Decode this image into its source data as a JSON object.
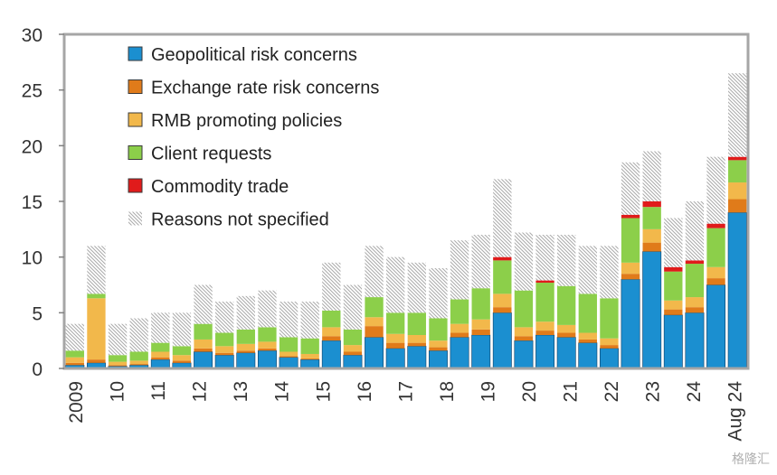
{
  "chart_data": {
    "type": "bar",
    "stacked": true,
    "ylim": [
      0,
      30
    ],
    "yticks": [
      0,
      5,
      10,
      15,
      20,
      25,
      30
    ],
    "grid": false,
    "legend_position": "top-left",
    "xtick_labels": [
      "2009",
      "10",
      "11",
      "12",
      "13",
      "14",
      "15",
      "16",
      "17",
      "18",
      "19",
      "20",
      "21",
      "22",
      "23",
      "24",
      "Aug 24"
    ],
    "legend": [
      {
        "name": "Geopolitical risk concerns",
        "color": "#1b8fd0",
        "pattern": "solid"
      },
      {
        "name": "Exchange rate risk concerns",
        "color": "#e07b1a",
        "pattern": "solid"
      },
      {
        "name": "RMB promoting policies",
        "color": "#f2b84b",
        "pattern": "solid"
      },
      {
        "name": "Client requests",
        "color": "#8ccf4a",
        "pattern": "solid"
      },
      {
        "name": "Commodity trade",
        "color": "#e01b1b",
        "pattern": "solid"
      },
      {
        "name": "Reasons not specified",
        "color": "#bbbbbb",
        "pattern": "hatch"
      }
    ],
    "x": [
      "2009",
      "2009.5",
      "2010",
      "2010.5",
      "2011",
      "2011.5",
      "2012",
      "2012.5",
      "2013",
      "2013.5",
      "2014",
      "2014.5",
      "2015",
      "2015.5",
      "2016",
      "2016.5",
      "2017",
      "2017.5",
      "2018",
      "2018.5",
      "2019",
      "2019.5",
      "2020",
      "2020.5",
      "2021",
      "2021.5",
      "2022",
      "2022.5",
      "2023",
      "2023.5",
      "2024",
      "Aug 24"
    ],
    "series": [
      {
        "name": "Geopolitical risk concerns",
        "values": [
          0.3,
          0.5,
          0.2,
          0.3,
          0.8,
          0.5,
          1.5,
          1.2,
          1.4,
          1.6,
          1.0,
          0.8,
          2.5,
          1.2,
          2.8,
          1.8,
          2.0,
          1.6,
          2.8,
          3.0,
          5.0,
          2.5,
          3.0,
          2.8,
          2.3,
          1.8,
          8.0,
          10.5,
          4.8,
          5.0,
          7.5,
          14.0
        ]
      },
      {
        "name": "Exchange rate risk concerns",
        "values": [
          0.2,
          0.3,
          0.1,
          0.1,
          0.2,
          0.2,
          0.3,
          0.2,
          0.2,
          0.2,
          0.1,
          0.1,
          0.4,
          0.3,
          1.0,
          0.5,
          0.3,
          0.3,
          0.4,
          0.5,
          0.5,
          0.4,
          0.4,
          0.4,
          0.3,
          0.3,
          0.5,
          0.8,
          0.5,
          0.5,
          0.6,
          1.2
        ]
      },
      {
        "name": "RMB promoting policies",
        "values": [
          0.5,
          5.5,
          0.3,
          0.3,
          0.5,
          0.5,
          0.8,
          0.6,
          0.6,
          0.6,
          0.4,
          0.4,
          0.8,
          0.6,
          0.8,
          0.8,
          0.7,
          0.6,
          0.8,
          0.9,
          1.2,
          0.8,
          0.8,
          0.7,
          0.6,
          0.6,
          1.0,
          1.2,
          0.8,
          0.9,
          1.0,
          1.5
        ]
      },
      {
        "name": "Client requests",
        "values": [
          0.6,
          0.4,
          0.6,
          0.8,
          0.8,
          0.8,
          1.4,
          1.2,
          1.3,
          1.3,
          1.3,
          1.4,
          1.5,
          1.4,
          1.8,
          1.9,
          2.0,
          2.0,
          2.2,
          2.8,
          3.0,
          3.3,
          3.5,
          3.5,
          3.5,
          3.6,
          4.0,
          2.0,
          2.6,
          3.0,
          3.5,
          2.0
        ]
      },
      {
        "name": "Commodity trade",
        "values": [
          0,
          0,
          0,
          0,
          0,
          0,
          0,
          0,
          0,
          0,
          0,
          0,
          0,
          0,
          0,
          0,
          0,
          0,
          0,
          0,
          0.3,
          0,
          0.2,
          0,
          0,
          0,
          0.3,
          0.5,
          0.4,
          0.3,
          0.4,
          0.3
        ]
      },
      {
        "name": "Reasons not specified",
        "values": [
          2.4,
          4.3,
          2.8,
          3.0,
          2.7,
          3.0,
          3.5,
          2.8,
          3.0,
          3.3,
          3.2,
          3.3,
          4.3,
          4.0,
          4.6,
          5.0,
          4.5,
          4.5,
          5.3,
          4.8,
          7.0,
          5.2,
          4.1,
          4.6,
          4.3,
          4.7,
          4.7,
          4.5,
          4.4,
          5.3,
          6.0,
          7.5
        ]
      }
    ]
  },
  "watermark": "格隆汇"
}
